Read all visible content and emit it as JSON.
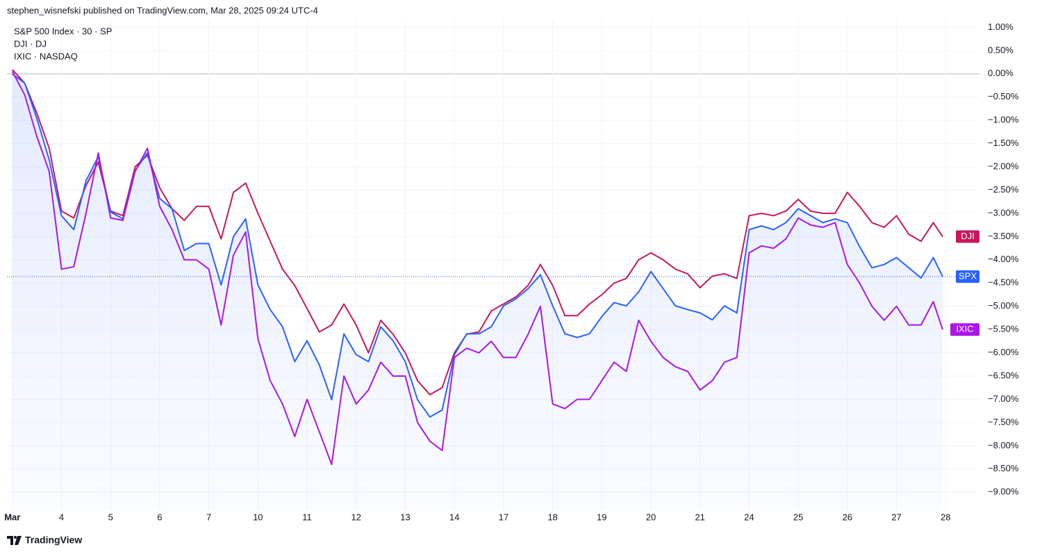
{
  "chart_data": {
    "type": "line",
    "title": "stephen_wisnefski published on TradingView.com, Mar 28, 2025 09:24 UTC-4",
    "legend": [
      "S&P 500 Index · 30 · SP",
      "DJI · DJ",
      "IXIC · NASDAQ"
    ],
    "footer": "TradingView",
    "grid": true,
    "x": [
      0,
      0.25,
      0.5,
      0.75,
      1,
      1.25,
      1.5,
      1.75,
      2,
      2.25,
      2.5,
      2.75,
      3,
      3.25,
      3.5,
      3.75,
      4,
      4.25,
      4.5,
      4.75,
      5,
      5.25,
      5.5,
      5.75,
      6,
      6.25,
      6.5,
      6.75,
      7,
      7.25,
      7.5,
      7.75,
      8,
      8.25,
      8.5,
      8.75,
      9,
      9.25,
      9.5,
      9.75,
      10,
      10.25,
      10.5,
      10.75,
      11,
      11.25,
      11.5,
      11.75,
      12,
      12.25,
      12.5,
      12.75,
      13,
      13.25,
      13.5,
      13.75,
      14,
      14.25,
      14.5,
      14.75,
      15,
      15.25,
      15.5,
      15.75,
      16,
      16.25,
      16.5,
      16.75,
      17,
      17.25,
      17.5,
      17.75,
      18,
      18.25,
      18.5,
      18.75,
      18.94
    ],
    "xlim": [
      -0.11,
      19.69
    ],
    "xticks": [
      {
        "value": 0,
        "label": "Mar"
      },
      {
        "value": 1,
        "label": "4"
      },
      {
        "value": 2,
        "label": "5"
      },
      {
        "value": 3,
        "label": "6"
      },
      {
        "value": 4,
        "label": "7"
      },
      {
        "value": 5,
        "label": "10"
      },
      {
        "value": 6,
        "label": "11"
      },
      {
        "value": 7,
        "label": "12"
      },
      {
        "value": 8,
        "label": "13"
      },
      {
        "value": 9,
        "label": "14"
      },
      {
        "value": 10,
        "label": "17"
      },
      {
        "value": 11,
        "label": "18"
      },
      {
        "value": 12,
        "label": "19"
      },
      {
        "value": 13,
        "label": "20"
      },
      {
        "value": 14,
        "label": "21"
      },
      {
        "value": 15,
        "label": "24"
      },
      {
        "value": 16,
        "label": "25"
      },
      {
        "value": 17,
        "label": "26"
      },
      {
        "value": 18,
        "label": "27"
      },
      {
        "value": 19,
        "label": "28"
      }
    ],
    "ylim": [
      -9.4,
      1.17
    ],
    "yticks": [
      {
        "value": 1,
        "label": "1.00%"
      },
      {
        "value": 0.5,
        "label": "0.50%"
      },
      {
        "value": 0,
        "label": "0.00%"
      },
      {
        "value": -0.5,
        "label": "−0.50%"
      },
      {
        "value": -1,
        "label": "−1.00%"
      },
      {
        "value": -1.5,
        "label": "−1.50%"
      },
      {
        "value": -2,
        "label": "−2.00%"
      },
      {
        "value": -2.5,
        "label": "−2.50%"
      },
      {
        "value": -3,
        "label": "−3.00%"
      },
      {
        "value": -3.5,
        "label": "−3.50%"
      },
      {
        "value": -4,
        "label": "−4.00%"
      },
      {
        "value": -4.5,
        "label": "−4.50%"
      },
      {
        "value": -5,
        "label": "−5.00%"
      },
      {
        "value": -5.5,
        "label": "−5.50%"
      },
      {
        "value": -6,
        "label": "−6.00%"
      },
      {
        "value": -6.5,
        "label": "−6.50%"
      },
      {
        "value": -7,
        "label": "−7.00%"
      },
      {
        "value": -7.5,
        "label": "−7.50%"
      },
      {
        "value": -8,
        "label": "−8.00%"
      },
      {
        "value": -8.5,
        "label": "−8.50%"
      },
      {
        "value": -9,
        "label": "−9.00%"
      }
    ],
    "series": [
      {
        "name": "SPX",
        "color": "#2962ff",
        "area": true,
        "values": [
          0,
          -0.2,
          -0.96,
          -1.85,
          -3.05,
          -3.35,
          -2.3,
          -1.78,
          -2.97,
          -3.12,
          -2.08,
          -1.7,
          -2.68,
          -2.9,
          -3.8,
          -3.65,
          -3.65,
          -4.54,
          -3.5,
          -3.12,
          -4.54,
          -5.07,
          -5.44,
          -6.19,
          -5.74,
          -6.26,
          -7.01,
          -5.59,
          -6.04,
          -6.19,
          -5.44,
          -5.74,
          -6.19,
          -7.01,
          -7.38,
          -7.23,
          -6.04,
          -5.59,
          -5.59,
          -5.44,
          -4.99,
          -4.84,
          -4.62,
          -4.32,
          -4.99,
          -5.59,
          -5.67,
          -5.59,
          -5.22,
          -4.92,
          -4.99,
          -4.69,
          -4.25,
          -4.62,
          -4.99,
          -5.07,
          -5.14,
          -5.29,
          -4.99,
          -5.14,
          -3.35,
          -3.27,
          -3.35,
          -3.2,
          -2.9,
          -3.05,
          -3.2,
          -3.12,
          -3.2,
          -3.72,
          -4.17,
          -4.1,
          -3.95,
          -4.17,
          -4.39,
          -3.95,
          -4.36
        ]
      },
      {
        "name": "DJI",
        "color": "#c8175d",
        "area": false,
        "values": [
          0.09,
          -0.2,
          -0.85,
          -1.6,
          -2.95,
          -3.1,
          -2.4,
          -1.9,
          -2.95,
          -3.05,
          -2.0,
          -1.75,
          -2.45,
          -2.9,
          -3.15,
          -2.85,
          -2.85,
          -3.55,
          -2.55,
          -2.35,
          -3.0,
          -3.6,
          -4.2,
          -4.55,
          -5.05,
          -5.55,
          -5.4,
          -4.95,
          -5.4,
          -6.0,
          -5.3,
          -5.6,
          -6.0,
          -6.6,
          -6.9,
          -6.75,
          -6.0,
          -5.6,
          -5.55,
          -5.1,
          -4.95,
          -4.8,
          -4.55,
          -4.1,
          -4.55,
          -5.2,
          -5.2,
          -4.95,
          -4.75,
          -4.5,
          -4.4,
          -4.0,
          -3.85,
          -4.0,
          -4.2,
          -4.3,
          -4.6,
          -4.35,
          -4.3,
          -4.4,
          -3.05,
          -3.0,
          -3.05,
          -2.95,
          -2.7,
          -2.95,
          -3.0,
          -3.0,
          -2.55,
          -2.85,
          -3.2,
          -3.3,
          -3.05,
          -3.45,
          -3.6,
          -3.2,
          -3.5
        ]
      },
      {
        "name": "IXIC",
        "color": "#aa16e8",
        "area": false,
        "values": [
          0.05,
          -0.45,
          -1.35,
          -2.1,
          -4.2,
          -4.15,
          -3.0,
          -1.7,
          -3.1,
          -3.15,
          -2.1,
          -1.6,
          -2.85,
          -3.35,
          -4.0,
          -4.0,
          -4.2,
          -5.4,
          -3.9,
          -3.4,
          -5.7,
          -6.6,
          -7.1,
          -7.8,
          -7.0,
          -7.7,
          -8.4,
          -6.5,
          -7.1,
          -6.8,
          -6.2,
          -6.5,
          -6.5,
          -7.5,
          -7.9,
          -8.1,
          -6.1,
          -5.9,
          -6.0,
          -5.75,
          -6.1,
          -6.1,
          -5.6,
          -5.0,
          -7.1,
          -7.2,
          -7.0,
          -7.0,
          -6.6,
          -6.2,
          -6.4,
          -5.3,
          -5.75,
          -6.1,
          -6.3,
          -6.4,
          -6.8,
          -6.6,
          -6.2,
          -6.1,
          -3.85,
          -3.7,
          -3.75,
          -3.55,
          -3.1,
          -3.25,
          -3.3,
          -3.2,
          -4.1,
          -4.5,
          -5.0,
          -5.3,
          -5.0,
          -5.4,
          -5.4,
          -4.9,
          -5.5
        ]
      }
    ]
  }
}
